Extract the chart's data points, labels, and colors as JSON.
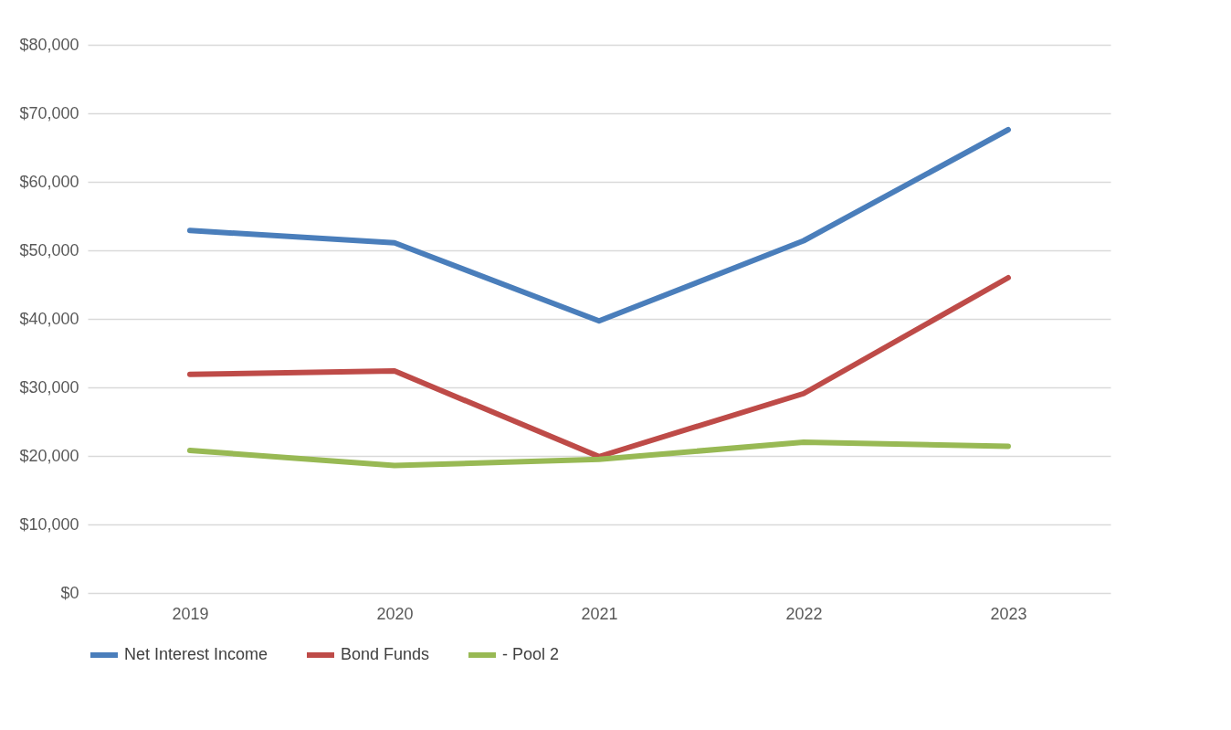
{
  "chart_data": {
    "type": "line",
    "categories": [
      "2019",
      "2020",
      "2021",
      "2022",
      "2023"
    ],
    "series": [
      {
        "name": "Net Interest Income",
        "color": "#4a7ebb",
        "values": [
          52900,
          51100,
          39700,
          51400,
          67600
        ]
      },
      {
        "name": "Bond Funds",
        "color": "#be4b48",
        "values": [
          31900,
          32400,
          19900,
          29100,
          46000
        ]
      },
      {
        "name": "- Pool 2",
        "color": "#98b954",
        "values": [
          20800,
          18600,
          19500,
          22000,
          21400
        ]
      }
    ],
    "ylim": [
      0,
      80000
    ],
    "yticks": [
      {
        "value": 0,
        "label": "$0"
      },
      {
        "value": 10000,
        "label": "$10,000"
      },
      {
        "value": 20000,
        "label": "$20,000"
      },
      {
        "value": 30000,
        "label": "$30,000"
      },
      {
        "value": 40000,
        "label": "$40,000"
      },
      {
        "value": 50000,
        "label": "$50,000"
      },
      {
        "value": 60000,
        "label": "$60,000"
      },
      {
        "value": 70000,
        "label": "$70,000"
      },
      {
        "value": 80000,
        "label": "$80,000"
      }
    ],
    "grid": "y",
    "legend": "bottom",
    "marker": "none",
    "line_style": "solid"
  }
}
